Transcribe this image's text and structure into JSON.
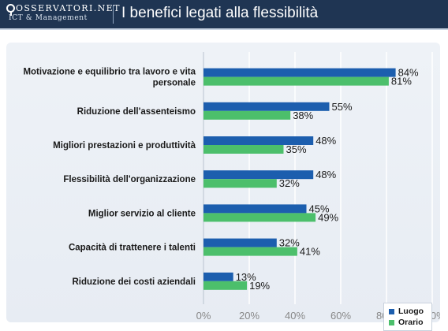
{
  "header": {
    "logo_name": "OSSERVATORI.NET",
    "logo_sub": "ICT & Management",
    "title": "I benefici legati alla flessibilità"
  },
  "colors": {
    "header_bg": "#1f3553",
    "luogo": "#1c5eae",
    "orario": "#4cbf6b"
  },
  "chart_data": {
    "type": "bar",
    "orientation": "horizontal",
    "title": "",
    "xlabel": "",
    "ylabel": "",
    "xlim": [
      0,
      100
    ],
    "x_ticks": [
      "0%",
      "20%",
      "40%",
      "60%",
      "80%",
      "100%"
    ],
    "grid": true,
    "legend_position": "bottom-right",
    "categories": [
      [
        "Motivazione e equilibrio tra lavoro e vita",
        "personale"
      ],
      [
        "Riduzione dell'assenteismo"
      ],
      [
        "Migliori prestazioni e produttività"
      ],
      [
        "Flessibilità dell'organizzazione"
      ],
      [
        "Miglior servizio al cliente"
      ],
      [
        "Capacità di trattenere i talenti"
      ],
      [
        "Riduzione dei costi aziendali"
      ]
    ],
    "series": [
      {
        "name": "Luogo",
        "values": [
          84,
          55,
          48,
          48,
          45,
          32,
          13
        ]
      },
      {
        "name": "Orario",
        "values": [
          81,
          38,
          35,
          32,
          49,
          41,
          19
        ]
      }
    ]
  }
}
